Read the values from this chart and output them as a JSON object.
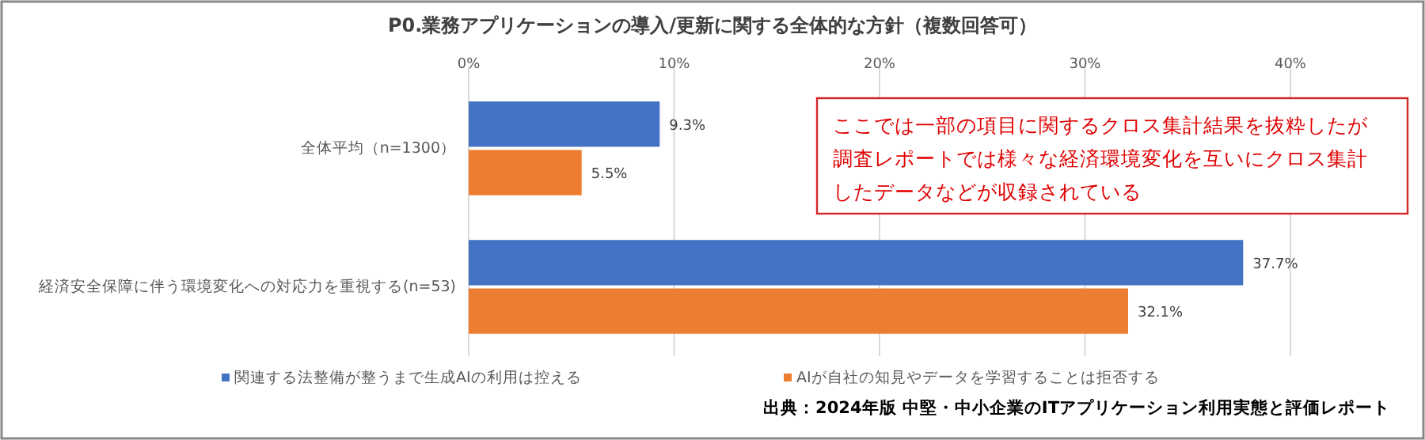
{
  "chart_data": {
    "type": "bar",
    "orientation": "horizontal",
    "title": "P0.業務アプリケーションの導入/更新に関する全体的な方針（複数回答可）",
    "categories": [
      "全体平均（n=1300）",
      "経済安全保障に伴う環境変化への対応力を重視する(n=53)"
    ],
    "series": [
      {
        "name": "関連する法整備が整うまで生成AIの利用は控える",
        "color": "#4472c4",
        "values": [
          9.3,
          37.7
        ],
        "value_labels": [
          "9.3%",
          "37.7%"
        ]
      },
      {
        "name": "AIが自社の知見やデータを学習することは拒否する",
        "color": "#ed7d31",
        "values": [
          5.5,
          32.1
        ],
        "value_labels": [
          "5.5%",
          "32.1%"
        ]
      }
    ],
    "xlim": [
      0,
      40
    ],
    "xticks": [
      {
        "value": 0,
        "label": "0%"
      },
      {
        "value": 10,
        "label": "10%"
      },
      {
        "value": 20,
        "label": "20%"
      },
      {
        "value": 30,
        "label": "30%"
      },
      {
        "value": 40,
        "label": "40%"
      }
    ],
    "grid": "x",
    "legend": "bottom",
    "annotations": [
      "ここでは一部の項目に関するクロス集計結果を抜粋したが調査レポートでは様々な経済環境変化を互いにクロス集計したデータなどが収録されている",
      "出典：2024年版 中堅・中小企業のITアプリケーション利用実態と評価レポート"
    ]
  }
}
